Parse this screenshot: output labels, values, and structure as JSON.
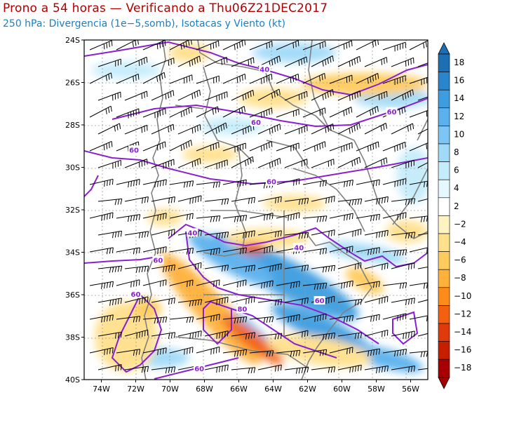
{
  "title": "Prono a 54 horas — Verificando a Thu06Z21DEC2017",
  "subtitle": "250 hPa: Divergencia (1e−5,somb), Isotacas y Viento (kt)",
  "map": {
    "lat_labels": [
      "24S",
      "26S",
      "28S",
      "30S",
      "32S",
      "34S",
      "36S",
      "38S",
      "40S"
    ],
    "lon_labels": [
      "74W",
      "72W",
      "70W",
      "68W",
      "66W",
      "64W",
      "62W",
      "60W",
      "58W",
      "56W"
    ],
    "lat_range": [
      -40,
      -24
    ],
    "lon_range": [
      -75,
      -55
    ],
    "isotach_labels": [
      {
        "text": "40",
        "lon": -64.5,
        "lat": -25.4
      },
      {
        "text": "60",
        "lon": -57.1,
        "lat": -27.4
      },
      {
        "text": "60",
        "lon": -65.0,
        "lat": -27.9
      },
      {
        "text": "60",
        "lon": -72.1,
        "lat": -29.2
      },
      {
        "text": "60",
        "lon": -64.1,
        "lat": -30.7
      },
      {
        "text": "40",
        "lon": -68.7,
        "lat": -33.1
      },
      {
        "text": "40",
        "lon": -62.5,
        "lat": -33.8
      },
      {
        "text": "60",
        "lon": -70.7,
        "lat": -34.4
      },
      {
        "text": "60",
        "lon": -72.0,
        "lat": -36.0
      },
      {
        "text": "60",
        "lon": -61.3,
        "lat": -36.3
      },
      {
        "text": "80",
        "lon": -65.8,
        "lat": -36.7
      },
      {
        "text": "60",
        "lon": -68.3,
        "lat": -39.5
      }
    ]
  },
  "colorbar": {
    "labels": [
      "18",
      "16",
      "14",
      "12",
      "10",
      "8",
      "6",
      "4",
      "2",
      "−2",
      "−4",
      "−6",
      "−8",
      "−10",
      "−12",
      "−14",
      "−16",
      "−18"
    ],
    "colors": [
      "#1d6fb3",
      "#2a86cc",
      "#3e9de0",
      "#5ab1ee",
      "#7cc5f4",
      "#a0daf8",
      "#c4ecfb",
      "#e4f8fd",
      "#ffffff",
      "#fff3c2",
      "#ffe08c",
      "#ffcb5c",
      "#ffb13a",
      "#ff8c1a",
      "#f26010",
      "#e03a0a",
      "#c81e00",
      "#a80000"
    ]
  },
  "colors": {
    "isotach": "#8a1fd1",
    "title": "#b00000",
    "subtitle": "#1a7fc4"
  }
}
